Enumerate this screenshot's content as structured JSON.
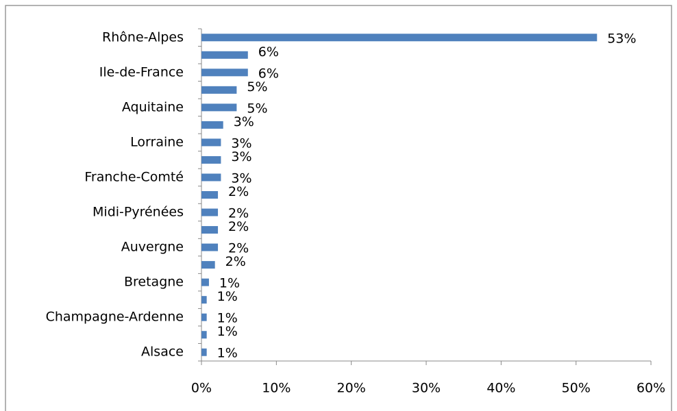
{
  "chart_data": {
    "type": "bar",
    "orientation": "horizontal",
    "categories": [
      "Rhône-Alpes",
      null,
      "Ile-de-France",
      null,
      "Aquitaine",
      null,
      "Lorraine",
      null,
      "Franche-Comté",
      null,
      "Midi-Pyrénées",
      null,
      "Auvergne",
      null,
      "Bretagne",
      null,
      "Champagne-Ardenne",
      null,
      "Alsace"
    ],
    "values": [
      52.8,
      6.2,
      6.2,
      4.7,
      4.7,
      2.9,
      2.6,
      2.6,
      2.6,
      2.2,
      2.2,
      2.2,
      2.2,
      1.8,
      1.0,
      0.7,
      0.7,
      0.7,
      0.7
    ],
    "value_labels": [
      "53%",
      "6%",
      "6%",
      "5%",
      "5%",
      "3%",
      "3%",
      "3%",
      "3%",
      "2%",
      "2%",
      "2%",
      "2%",
      "2%",
      "1%",
      "1%",
      "1%",
      "1%",
      "1%"
    ],
    "color": "#4f81bd",
    "xlim": [
      0,
      60
    ],
    "xticks": [
      {
        "value": 0,
        "label": "0%"
      },
      {
        "value": 10,
        "label": "10%"
      },
      {
        "value": 20,
        "label": "20%"
      },
      {
        "value": 30,
        "label": "30%"
      },
      {
        "value": 40,
        "label": "40%"
      },
      {
        "value": 50,
        "label": "50%"
      },
      {
        "value": 60,
        "label": "60%"
      }
    ],
    "grid": false
  }
}
